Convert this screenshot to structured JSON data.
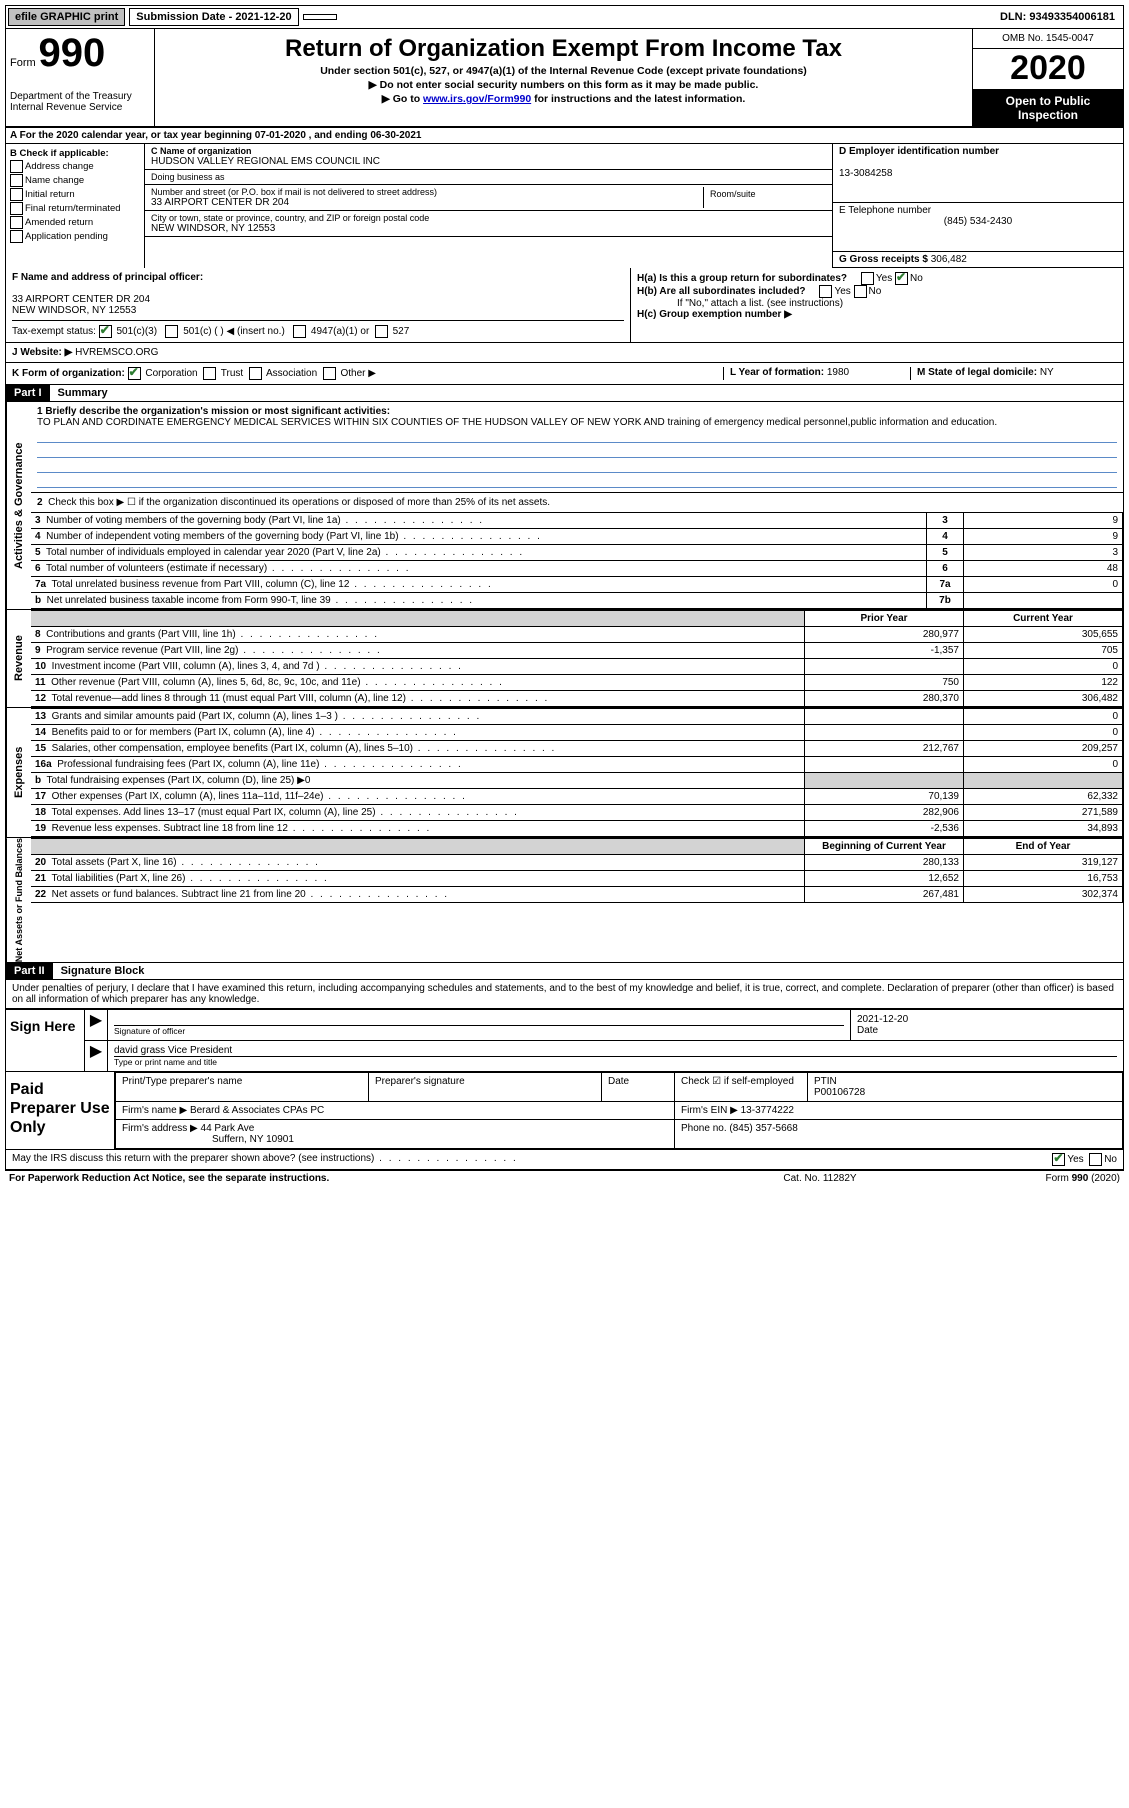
{
  "topbar": {
    "efile": "efile GRAPHIC print",
    "submission_label": "Submission Date - 2021-12-20",
    "dln": "DLN: 93493354006181"
  },
  "header": {
    "form_prefix": "Form",
    "form_number": "990",
    "dept": "Department of the Treasury\nInternal Revenue Service",
    "title": "Return of Organization Exempt From Income Tax",
    "sub1": "Under section 501(c), 527, or 4947(a)(1) of the Internal Revenue Code (except private foundations)",
    "sub2": "Do not enter social security numbers on this form as it may be made public.",
    "sub3_prefix": "Go to ",
    "sub3_link": "www.irs.gov/Form990",
    "sub3_suffix": " for instructions and the latest information.",
    "omb": "OMB No. 1545-0047",
    "year": "2020",
    "inspect": "Open to Public Inspection"
  },
  "rowA": "A  For the 2020 calendar year, or tax year beginning 07-01-2020   , and ending 06-30-2021",
  "B": {
    "label": "B Check if applicable:",
    "items": [
      "Address change",
      "Name change",
      "Initial return",
      "Final return/terminated",
      "Amended return",
      "Application pending"
    ]
  },
  "C": {
    "name_label": "C Name of organization",
    "name": "HUDSON VALLEY REGIONAL EMS COUNCIL INC",
    "dba_label": "Doing business as",
    "dba": "",
    "street_label": "Number and street (or P.O. box if mail is not delivered to street address)",
    "room_label": "Room/suite",
    "street": "33 AIRPORT CENTER DR 204",
    "city_label": "City or town, state or province, country, and ZIP or foreign postal code",
    "city": "NEW WINDSOR, NY  12553"
  },
  "D": {
    "label": "D Employer identification number",
    "value": "13-3084258"
  },
  "E": {
    "label": "E Telephone number",
    "value": "(845) 534-2430"
  },
  "G": {
    "label": "G Gross receipts $",
    "value": "306,482"
  },
  "F": {
    "label": "F  Name and address of principal officer:",
    "addr1": "33 AIRPORT CENTER DR 204",
    "addr2": "NEW WINDSOR, NY  12553"
  },
  "H": {
    "a_label": "H(a)  Is this a group return for subordinates?",
    "b_label": "H(b)  Are all subordinates included?",
    "b_note": "If \"No,\" attach a list. (see instructions)",
    "c_label": "H(c)  Group exemption number ▶"
  },
  "I": {
    "label": "Tax-exempt status:",
    "opts": [
      "501(c)(3)",
      "501(c) (  ) ◀ (insert no.)",
      "4947(a)(1) or",
      "527"
    ]
  },
  "J": {
    "label": "J  Website: ▶",
    "value": "HVREMSCO.ORG"
  },
  "K": {
    "label": "K Form of organization:",
    "opts": [
      "Corporation",
      "Trust",
      "Association",
      "Other ▶"
    ],
    "L_label": "L Year of formation:",
    "L_val": "1980",
    "M_label": "M State of legal domicile:",
    "M_val": "NY"
  },
  "partI": {
    "tab": "Part I",
    "title": "Summary"
  },
  "mission": {
    "q1_label": "1  Briefly describe the organization's mission or most significant activities:",
    "q1_text": "TO PLAN AND CORDINATE EMERGENCY MEDICAL SERVICES WITHIN SIX COUNTIES OF THE HUDSON VALLEY OF NEW YORK AND training of emergency medical personnel,public information and education."
  },
  "act_gov": {
    "sidelabel": "Activities & Governance",
    "q2": "Check this box ▶ ☐  if the organization discontinued its operations or disposed of more than 25% of its net assets.",
    "rows": [
      {
        "n": "3",
        "desc": "Number of voting members of the governing body (Part VI, line 1a)",
        "box": "3",
        "val": "9"
      },
      {
        "n": "4",
        "desc": "Number of independent voting members of the governing body (Part VI, line 1b)",
        "box": "4",
        "val": "9"
      },
      {
        "n": "5",
        "desc": "Total number of individuals employed in calendar year 2020 (Part V, line 2a)",
        "box": "5",
        "val": "3"
      },
      {
        "n": "6",
        "desc": "Total number of volunteers (estimate if necessary)",
        "box": "6",
        "val": "48"
      },
      {
        "n": "7a",
        "desc": "Total unrelated business revenue from Part VIII, column (C), line 12",
        "box": "7a",
        "val": "0"
      },
      {
        "n": "b",
        "desc": "Net unrelated business taxable income from Form 990-T, line 39",
        "box": "7b",
        "val": ""
      }
    ]
  },
  "revenue": {
    "sidelabel": "Revenue",
    "header_prior": "Prior Year",
    "header_curr": "Current Year",
    "rows": [
      {
        "n": "8",
        "desc": "Contributions and grants (Part VIII, line 1h)",
        "py": "280,977",
        "cy": "305,655"
      },
      {
        "n": "9",
        "desc": "Program service revenue (Part VIII, line 2g)",
        "py": "-1,357",
        "cy": "705"
      },
      {
        "n": "10",
        "desc": "Investment income (Part VIII, column (A), lines 3, 4, and 7d )",
        "py": "",
        "cy": "0"
      },
      {
        "n": "11",
        "desc": "Other revenue (Part VIII, column (A), lines 5, 6d, 8c, 9c, 10c, and 11e)",
        "py": "750",
        "cy": "122"
      },
      {
        "n": "12",
        "desc": "Total revenue—add lines 8 through 11 (must equal Part VIII, column (A), line 12)",
        "py": "280,370",
        "cy": "306,482"
      }
    ]
  },
  "expenses": {
    "sidelabel": "Expenses",
    "rows": [
      {
        "n": "13",
        "desc": "Grants and similar amounts paid (Part IX, column (A), lines 1–3 )",
        "py": "",
        "cy": "0"
      },
      {
        "n": "14",
        "desc": "Benefits paid to or for members (Part IX, column (A), line 4)",
        "py": "",
        "cy": "0"
      },
      {
        "n": "15",
        "desc": "Salaries, other compensation, employee benefits (Part IX, column (A), lines 5–10)",
        "py": "212,767",
        "cy": "209,257"
      },
      {
        "n": "16a",
        "desc": "Professional fundraising fees (Part IX, column (A), line 11e)",
        "py": "",
        "cy": "0"
      },
      {
        "n": "b",
        "desc": "Total fundraising expenses (Part IX, column (D), line 25) ▶0",
        "py": "",
        "cy": "",
        "shaded": true
      },
      {
        "n": "17",
        "desc": "Other expenses (Part IX, column (A), lines 11a–11d, 11f–24e)",
        "py": "70,139",
        "cy": "62,332"
      },
      {
        "n": "18",
        "desc": "Total expenses. Add lines 13–17 (must equal Part IX, column (A), line 25)",
        "py": "282,906",
        "cy": "271,589"
      },
      {
        "n": "19",
        "desc": "Revenue less expenses. Subtract line 18 from line 12",
        "py": "-2,536",
        "cy": "34,893"
      }
    ]
  },
  "netassets": {
    "sidelabel": "Net Assets or Fund Balances",
    "header_begin": "Beginning of Current Year",
    "header_end": "End of Year",
    "rows": [
      {
        "n": "20",
        "desc": "Total assets (Part X, line 16)",
        "py": "280,133",
        "cy": "319,127"
      },
      {
        "n": "21",
        "desc": "Total liabilities (Part X, line 26)",
        "py": "12,652",
        "cy": "16,753"
      },
      {
        "n": "22",
        "desc": "Net assets or fund balances. Subtract line 21 from line 20",
        "py": "267,481",
        "cy": "302,374"
      }
    ]
  },
  "partII": {
    "tab": "Part II",
    "title": "Signature Block"
  },
  "penalties": "Under penalties of perjury, I declare that I have examined this return, including accompanying schedules and statements, and to the best of my knowledge and belief, it is true, correct, and complete. Declaration of preparer (other than officer) is based on all information of which preparer has any knowledge.",
  "sign": {
    "left": "Sign Here",
    "sig_officer": "Signature of officer",
    "date": "2021-12-20",
    "date_label": "Date",
    "name": "david grass  Vice President",
    "name_label": "Type or print name and title"
  },
  "prep": {
    "left": "Paid Preparer Use Only",
    "col1": "Print/Type preparer's name",
    "col2": "Preparer's signature",
    "col3": "Date",
    "col4_label": "Check ☑ if self-employed",
    "ptin_label": "PTIN",
    "ptin": "P00106728",
    "firm_label": "Firm's name   ▶",
    "firm": "Berard & Associates CPAs PC",
    "ein_label": "Firm's EIN ▶",
    "ein": "13-3774222",
    "addr_label": "Firm's address ▶",
    "addr1": "44 Park Ave",
    "addr2": "Suffern, NY  10901",
    "phone_label": "Phone no.",
    "phone": "(845) 357-5668"
  },
  "discuss": "May the IRS discuss this return with the preparer shown above? (see instructions)",
  "footer": {
    "left": "For Paperwork Reduction Act Notice, see the separate instructions.",
    "mid": "Cat. No. 11282Y",
    "right": "Form 990 (2020)"
  }
}
